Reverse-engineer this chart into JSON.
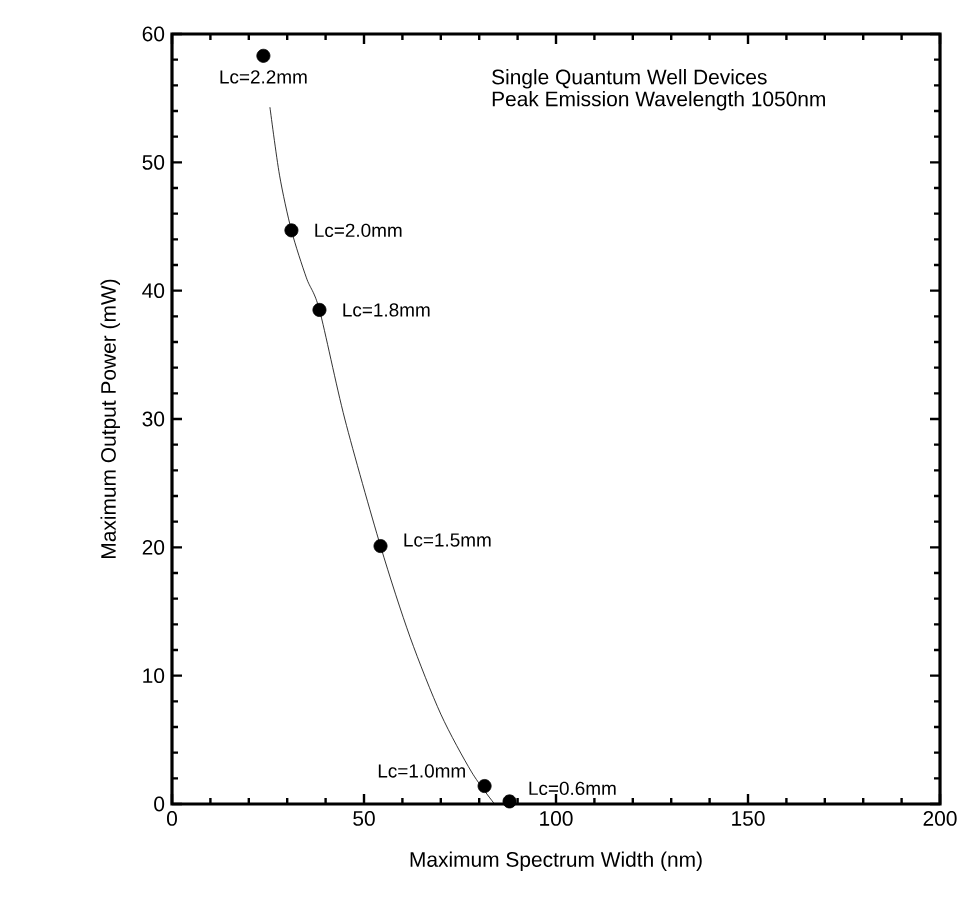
{
  "chart_data": {
    "type": "scatter",
    "xlabel": "Maximum Spectrum Width (nm)",
    "ylabel": "Maximum Output Power (mW)",
    "xlim": [
      0,
      200
    ],
    "ylim": [
      0,
      60
    ],
    "xticks": [
      0,
      50,
      100,
      150,
      200
    ],
    "yticks": [
      0,
      10,
      20,
      30,
      40,
      50,
      60
    ],
    "grid": false,
    "series": [
      {
        "color": "#000000",
        "marker": "circle",
        "x": [
          23.8,
          31.1,
          38.4,
          54.3,
          81.4,
          87.9
        ],
        "values": [
          58.3,
          44.7,
          38.5,
          20.1,
          1.4,
          0.2
        ]
      },
      {
        "type": "line",
        "color": "#000000",
        "marker": "none",
        "line_style": "solid",
        "x": [
          25.5,
          28,
          31.1,
          35,
          38.4,
          45,
          54.3,
          62,
          70,
          78,
          84
        ],
        "values": [
          54.3,
          49,
          44.7,
          41,
          38.5,
          30,
          20.1,
          13,
          7,
          2.5,
          0
        ]
      }
    ],
    "annotations": [
      {
        "text": "Lc=2.2mm",
        "x": 23.8,
        "y": 58.3
      },
      {
        "text": "Lc=2.0mm",
        "x": 31.1,
        "y": 44.7
      },
      {
        "text": "Lc=1.8mm",
        "x": 38.4,
        "y": 38.5
      },
      {
        "text": "Lc=1.5mm",
        "x": 54.3,
        "y": 20.1
      },
      {
        "text": "Lc=1.0mm",
        "x": 81.4,
        "y": 1.4
      },
      {
        "text": "Lc=0.6mm",
        "x": 87.9,
        "y": 0.2
      },
      "Single Quantum Well Devices",
      "Peak Emission Wavelength 1050nm"
    ]
  }
}
